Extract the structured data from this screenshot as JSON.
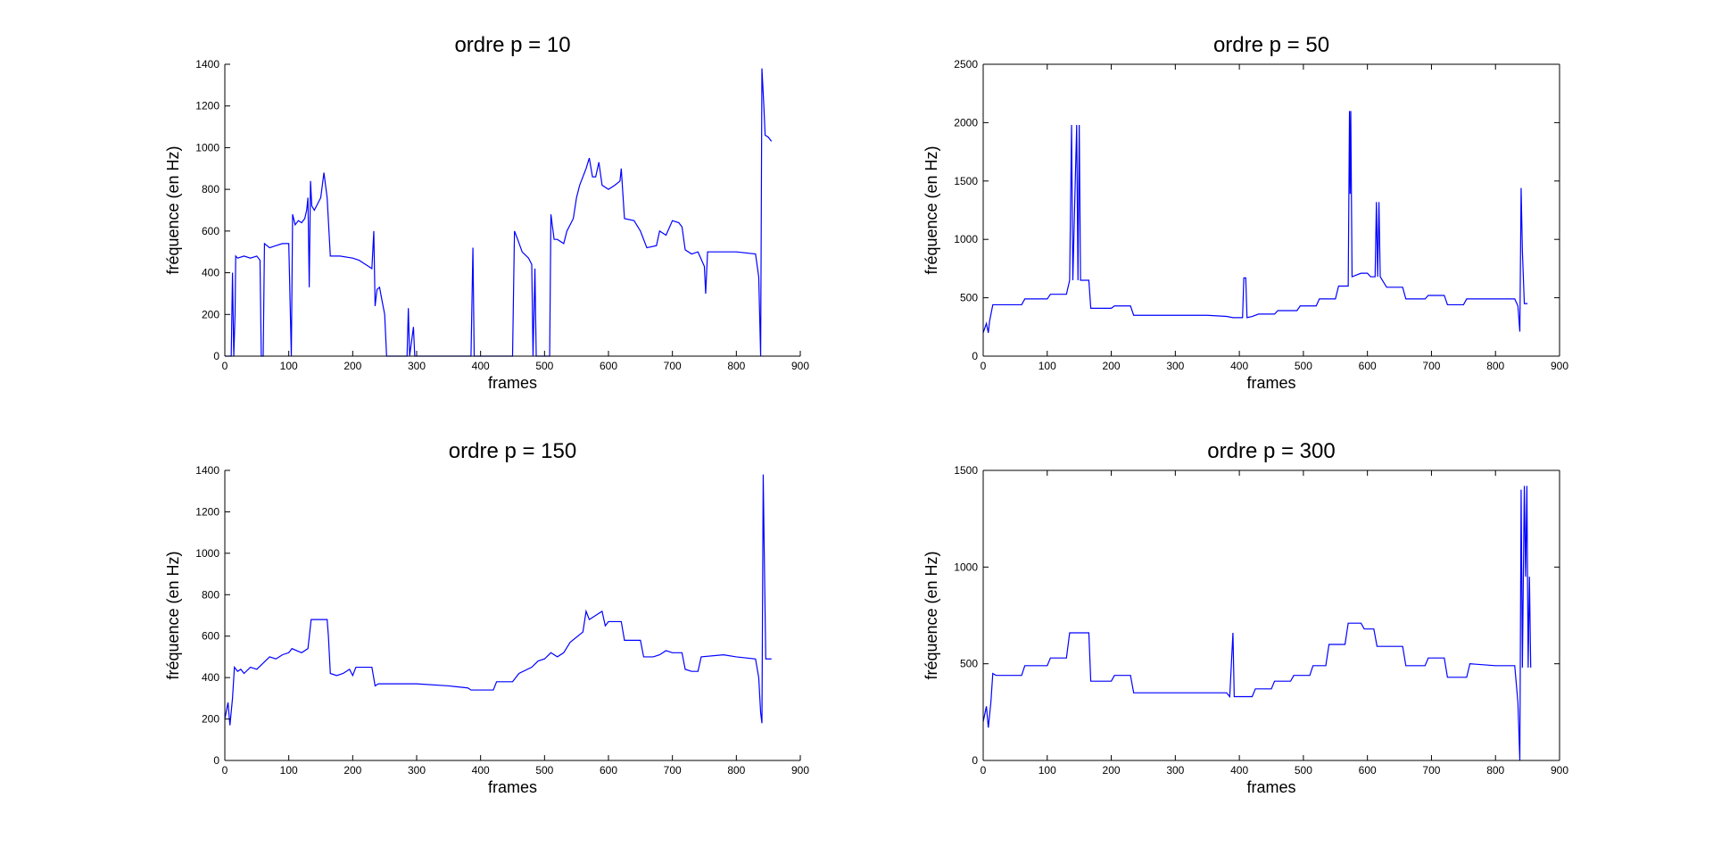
{
  "chart_data": [
    {
      "type": "line",
      "title": "ordre p = 10",
      "x_label": "frames",
      "y_label": "fréquence (en Hz)",
      "color": "#0000ff",
      "box": false,
      "xlim": [
        0,
        900
      ],
      "ylim": [
        0,
        1400
      ],
      "xticks": [
        0,
        100,
        200,
        300,
        400,
        500,
        600,
        700,
        800,
        900
      ],
      "yticks": [
        0,
        200,
        400,
        600,
        800,
        1000,
        1200,
        1400
      ],
      "x": [
        0,
        10,
        12,
        14,
        16,
        17,
        20,
        30,
        40,
        50,
        55,
        57,
        60,
        62,
        70,
        80,
        90,
        100,
        104,
        106,
        110,
        115,
        120,
        125,
        128,
        130,
        132,
        134,
        136,
        140,
        150,
        155,
        160,
        165,
        180,
        200,
        210,
        220,
        230,
        233,
        235,
        238,
        242,
        245,
        250,
        253,
        285,
        287,
        289,
        295,
        297,
        385,
        388,
        390,
        450,
        453,
        458,
        465,
        475,
        480,
        482,
        485,
        487,
        508,
        510,
        515,
        520,
        530,
        535,
        545,
        550,
        555,
        565,
        570,
        575,
        580,
        585,
        590,
        600,
        610,
        618,
        620,
        625,
        640,
        650,
        660,
        675,
        680,
        690,
        700,
        710,
        715,
        720,
        730,
        740,
        750,
        752,
        755,
        770,
        800,
        830,
        835,
        838,
        840,
        843,
        845,
        850,
        855
      ],
      "values": [
        0,
        0,
        400,
        0,
        200,
        480,
        470,
        480,
        470,
        480,
        460,
        0,
        0,
        540,
        520,
        530,
        540,
        540,
        0,
        680,
        630,
        650,
        640,
        660,
        700,
        760,
        330,
        840,
        720,
        700,
        760,
        880,
        760,
        480,
        480,
        470,
        460,
        440,
        420,
        600,
        240,
        320,
        330,
        280,
        200,
        0,
        0,
        230,
        0,
        140,
        0,
        0,
        520,
        0,
        0,
        600,
        560,
        500,
        470,
        440,
        0,
        420,
        0,
        0,
        680,
        560,
        560,
        540,
        600,
        660,
        760,
        820,
        900,
        950,
        860,
        860,
        930,
        820,
        800,
        820,
        840,
        900,
        660,
        650,
        600,
        520,
        530,
        600,
        580,
        650,
        640,
        620,
        510,
        490,
        500,
        430,
        300,
        500,
        500,
        500,
        490,
        380,
        0,
        1380,
        1200,
        1060,
        1050,
        1030
      ]
    },
    {
      "type": "line",
      "title": "ordre p = 50",
      "x_label": "frames",
      "y_label": "fréquence (en Hz)",
      "color": "#0000ff",
      "box": true,
      "xlim": [
        0,
        900
      ],
      "ylim": [
        0,
        2500
      ],
      "xticks": [
        0,
        100,
        200,
        300,
        400,
        500,
        600,
        700,
        800,
        900
      ],
      "yticks": [
        0,
        500,
        1000,
        1500,
        2000,
        2500
      ],
      "x": [
        0,
        5,
        8,
        10,
        15,
        30,
        50,
        60,
        65,
        100,
        105,
        130,
        135,
        138,
        140,
        143,
        146,
        148,
        150,
        152,
        165,
        168,
        200,
        205,
        230,
        235,
        300,
        350,
        380,
        390,
        405,
        407,
        410,
        412,
        420,
        430,
        455,
        460,
        490,
        495,
        520,
        525,
        550,
        555,
        570,
        572,
        573,
        574,
        576,
        590,
        600,
        605,
        612,
        614,
        616,
        618,
        620,
        630,
        655,
        660,
        690,
        695,
        720,
        725,
        750,
        755,
        830,
        835,
        838,
        840,
        842,
        845,
        850
      ],
      "values": [
        200,
        280,
        200,
        300,
        440,
        440,
        440,
        440,
        490,
        490,
        530,
        530,
        650,
        1980,
        650,
        1330,
        1980,
        650,
        1980,
        650,
        650,
        410,
        410,
        430,
        430,
        350,
        350,
        350,
        340,
        330,
        330,
        670,
        670,
        330,
        340,
        360,
        360,
        390,
        390,
        430,
        430,
        490,
        490,
        600,
        600,
        2100,
        1390,
        2100,
        680,
        710,
        710,
        680,
        680,
        1320,
        680,
        1320,
        680,
        590,
        590,
        490,
        490,
        520,
        520,
        440,
        440,
        490,
        490,
        430,
        210,
        1440,
        900,
        450,
        450
      ]
    },
    {
      "type": "line",
      "title": "ordre p = 150",
      "x_label": "frames",
      "y_label": "fréquence (en Hz)",
      "color": "#0000ff",
      "box": false,
      "xlim": [
        0,
        900
      ],
      "ylim": [
        0,
        1400
      ],
      "xticks": [
        0,
        100,
        200,
        300,
        400,
        500,
        600,
        700,
        800,
        900
      ],
      "yticks": [
        0,
        200,
        400,
        600,
        800,
        1000,
        1200,
        1400
      ],
      "x": [
        0,
        5,
        8,
        12,
        15,
        20,
        25,
        30,
        40,
        50,
        60,
        70,
        80,
        90,
        100,
        105,
        120,
        130,
        135,
        160,
        162,
        165,
        175,
        185,
        195,
        200,
        205,
        230,
        235,
        240,
        250,
        300,
        350,
        380,
        385,
        420,
        425,
        450,
        460,
        480,
        490,
        500,
        510,
        520,
        530,
        540,
        560,
        565,
        570,
        580,
        590,
        595,
        600,
        620,
        625,
        650,
        655,
        670,
        680,
        690,
        700,
        715,
        720,
        730,
        740,
        745,
        780,
        800,
        830,
        835,
        838,
        840,
        842,
        844,
        846,
        855
      ],
      "values": [
        200,
        280,
        170,
        300,
        450,
        430,
        440,
        420,
        450,
        440,
        470,
        500,
        490,
        510,
        520,
        540,
        520,
        540,
        680,
        680,
        600,
        420,
        410,
        420,
        440,
        410,
        450,
        450,
        360,
        370,
        370,
        370,
        360,
        350,
        340,
        340,
        380,
        380,
        420,
        450,
        480,
        490,
        520,
        500,
        520,
        570,
        620,
        720,
        680,
        700,
        720,
        650,
        670,
        670,
        580,
        580,
        500,
        500,
        510,
        530,
        520,
        520,
        440,
        430,
        430,
        500,
        510,
        500,
        490,
        400,
        230,
        180,
        1380,
        920,
        490,
        490
      ]
    },
    {
      "type": "line",
      "title": "ordre p = 300",
      "x_label": "frames",
      "y_label": "fréquence (en Hz)",
      "color": "#0000ff",
      "box": true,
      "xlim": [
        0,
        900
      ],
      "ylim": [
        0,
        1500
      ],
      "xticks": [
        0,
        100,
        200,
        300,
        400,
        500,
        600,
        700,
        800,
        900
      ],
      "yticks": [
        0,
        500,
        1000,
        1500
      ],
      "x": [
        0,
        5,
        8,
        12,
        15,
        20,
        60,
        65,
        100,
        105,
        130,
        135,
        165,
        168,
        200,
        205,
        230,
        235,
        300,
        380,
        385,
        390,
        392,
        420,
        425,
        450,
        455,
        480,
        485,
        510,
        515,
        535,
        540,
        565,
        570,
        590,
        595,
        610,
        615,
        655,
        660,
        690,
        695,
        720,
        725,
        755,
        760,
        800,
        830,
        835,
        838,
        840,
        842,
        845,
        847,
        849,
        851,
        853,
        855
      ],
      "values": [
        200,
        280,
        170,
        300,
        450,
        440,
        440,
        490,
        490,
        530,
        530,
        660,
        660,
        410,
        410,
        440,
        440,
        350,
        350,
        350,
        330,
        660,
        330,
        330,
        370,
        370,
        410,
        410,
        440,
        440,
        490,
        490,
        600,
        600,
        710,
        710,
        680,
        680,
        590,
        590,
        490,
        490,
        530,
        530,
        430,
        430,
        500,
        490,
        490,
        300,
        0,
        1400,
        480,
        1420,
        950,
        1420,
        480,
        950,
        480
      ]
    }
  ]
}
